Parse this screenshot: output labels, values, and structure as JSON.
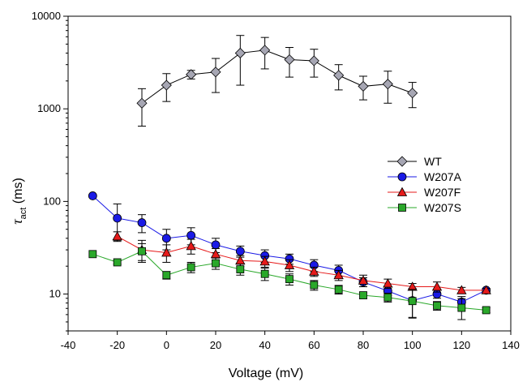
{
  "chart_data": {
    "type": "line",
    "xlabel": "Voltage (mV)",
    "ylabel_main": "τ",
    "ylabel_sub": "act",
    "ylabel_unit": " (ms)",
    "xlim": [
      -40,
      140
    ],
    "ylim": [
      4,
      10000
    ],
    "yscale": "log",
    "grid": false,
    "legend_position": "right",
    "x_ticks": [
      -40,
      -20,
      0,
      20,
      40,
      60,
      80,
      100,
      120,
      140
    ],
    "x_tick_labels": [
      "-40",
      "-20",
      "0",
      "20",
      "40",
      "60",
      "80",
      "100",
      "120",
      "140"
    ],
    "y_ticks": [
      10,
      100,
      1000,
      10000
    ],
    "y_tick_labels": [
      "10",
      "100",
      "1000",
      "10000"
    ],
    "series": [
      {
        "name": "WT",
        "marker": "diamond",
        "color": "#a6a6b3",
        "line_color": "#000000",
        "x": [
          -10,
          0,
          10,
          20,
          30,
          40,
          50,
          60,
          70,
          80,
          90,
          100
        ],
        "y": [
          1150,
          1800,
          2350,
          2500,
          4000,
          4300,
          3400,
          3300,
          2300,
          1750,
          1850,
          1480
        ],
        "err": [
          500,
          600,
          250,
          1000,
          2200,
          1600,
          1200,
          1100,
          700,
          500,
          700,
          450
        ]
      },
      {
        "name": "W207A",
        "marker": "circle",
        "color": "#1a1ae6",
        "line_color": "#1a1ae6",
        "x": [
          -30,
          -20,
          -10,
          0,
          10,
          20,
          30,
          40,
          50,
          60,
          70,
          80,
          90,
          100,
          110,
          120,
          130
        ],
        "y": [
          115,
          66,
          59,
          40,
          43,
          34,
          29,
          26,
          24,
          20.5,
          18,
          13.5,
          10.8,
          8.5,
          10,
          8.2,
          11
        ],
        "err": [
          0,
          28,
          13,
          10,
          9,
          6,
          4,
          4,
          3,
          3,
          2.5,
          1.5,
          1.2,
          3,
          1,
          1.2,
          0.5
        ]
      },
      {
        "name": "W207F",
        "marker": "triangle",
        "color": "#e61a1a",
        "line_color": "#e61a1a",
        "x": [
          -20,
          -10,
          0,
          10,
          20,
          30,
          40,
          50,
          60,
          70,
          80,
          90,
          100,
          110,
          120,
          130
        ],
        "y": [
          42,
          30,
          28,
          33,
          27,
          23,
          22.5,
          20.5,
          17.5,
          16,
          14,
          13,
          12,
          12,
          11,
          11
        ],
        "err": [
          5,
          8,
          6,
          6,
          4,
          3,
          3,
          3,
          2,
          2,
          2,
          1.5,
          1,
          1.5,
          0.8,
          0.5
        ]
      },
      {
        "name": "W207S",
        "marker": "square",
        "color": "#2aa82a",
        "line_color": "#2aa82a",
        "x": [
          -30,
          -20,
          -10,
          0,
          10,
          20,
          30,
          40,
          50,
          60,
          70,
          80,
          90,
          100,
          110,
          120,
          130
        ],
        "y": [
          27,
          22,
          29,
          16,
          19.5,
          21.5,
          18.5,
          16.5,
          14.5,
          12.5,
          11.2,
          9.7,
          9.2,
          8.4,
          7.5,
          7.1,
          6.7
        ],
        "err": [
          0,
          1,
          6,
          1.5,
          2.5,
          3,
          2.5,
          2.5,
          2,
          1.5,
          1.2,
          0.8,
          1,
          2.8,
          0.8,
          1.8,
          0.4
        ]
      }
    ]
  }
}
